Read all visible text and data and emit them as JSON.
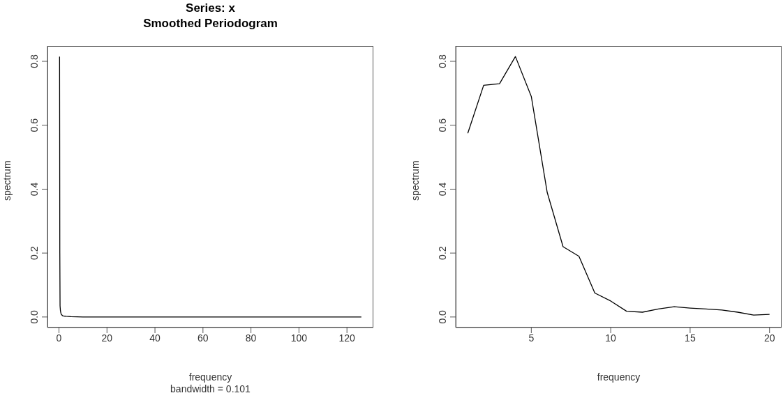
{
  "chart_data": [
    {
      "type": "line",
      "title": "Series: x",
      "subtitle": "Smoothed Periodogram",
      "xlabel": "frequency",
      "ylabel": "spectrum",
      "annotations": [
        "bandwidth = 0.101"
      ],
      "series": [
        {
          "color": "#000000",
          "x": [
            0.25,
            0.3,
            0.35,
            0.45,
            0.6,
            0.8,
            1,
            1.5,
            2,
            3,
            5,
            10,
            30,
            60,
            90,
            126
          ],
          "values": [
            0.815,
            0.54,
            0.2,
            0.035,
            0.02,
            0.012,
            0.008,
            0.004,
            0.003,
            0.002,
            0.001,
            0,
            0,
            0,
            0,
            0
          ]
        }
      ],
      "xlim": [
        -4.8,
        131
      ],
      "xticks": [
        0,
        20,
        40,
        60,
        80,
        100,
        120
      ],
      "ylim": [
        -0.033,
        0.848
      ],
      "yticks": [
        {
          "value": 0,
          "label": "0.0"
        },
        {
          "value": 0.2,
          "label": "0.2"
        },
        {
          "value": 0.4,
          "label": "0.4"
        },
        {
          "value": 0.6,
          "label": "0.6"
        },
        {
          "value": 0.8,
          "label": "0.8"
        }
      ],
      "marker": "none",
      "line_style": "solid"
    },
    {
      "type": "line",
      "xlabel": "frequency",
      "ylabel": "spectrum",
      "series": [
        {
          "color": "#000000",
          "x": [
            1,
            2,
            3,
            4,
            5,
            6,
            7,
            8,
            9,
            10,
            11,
            12,
            13,
            14,
            15,
            16,
            17,
            18,
            19,
            20
          ],
          "values": [
            0.575,
            0.725,
            0.73,
            0.815,
            0.69,
            0.39,
            0.22,
            0.19,
            0.075,
            0.05,
            0.018,
            0.015,
            0.025,
            0.032,
            0.028,
            0.025,
            0.022,
            0.015,
            0.006,
            0.008
          ]
        }
      ],
      "xlim": [
        0.24,
        20.76
      ],
      "xticks": [
        5,
        10,
        15,
        20
      ],
      "ylim": [
        -0.033,
        0.848
      ],
      "yticks": [
        {
          "value": 0,
          "label": "0.0"
        },
        {
          "value": 0.2,
          "label": "0.2"
        },
        {
          "value": 0.4,
          "label": "0.4"
        },
        {
          "value": 0.6,
          "label": "0.6"
        },
        {
          "value": 0.8,
          "label": "0.8"
        }
      ],
      "marker": "none",
      "line_style": "solid"
    }
  ]
}
